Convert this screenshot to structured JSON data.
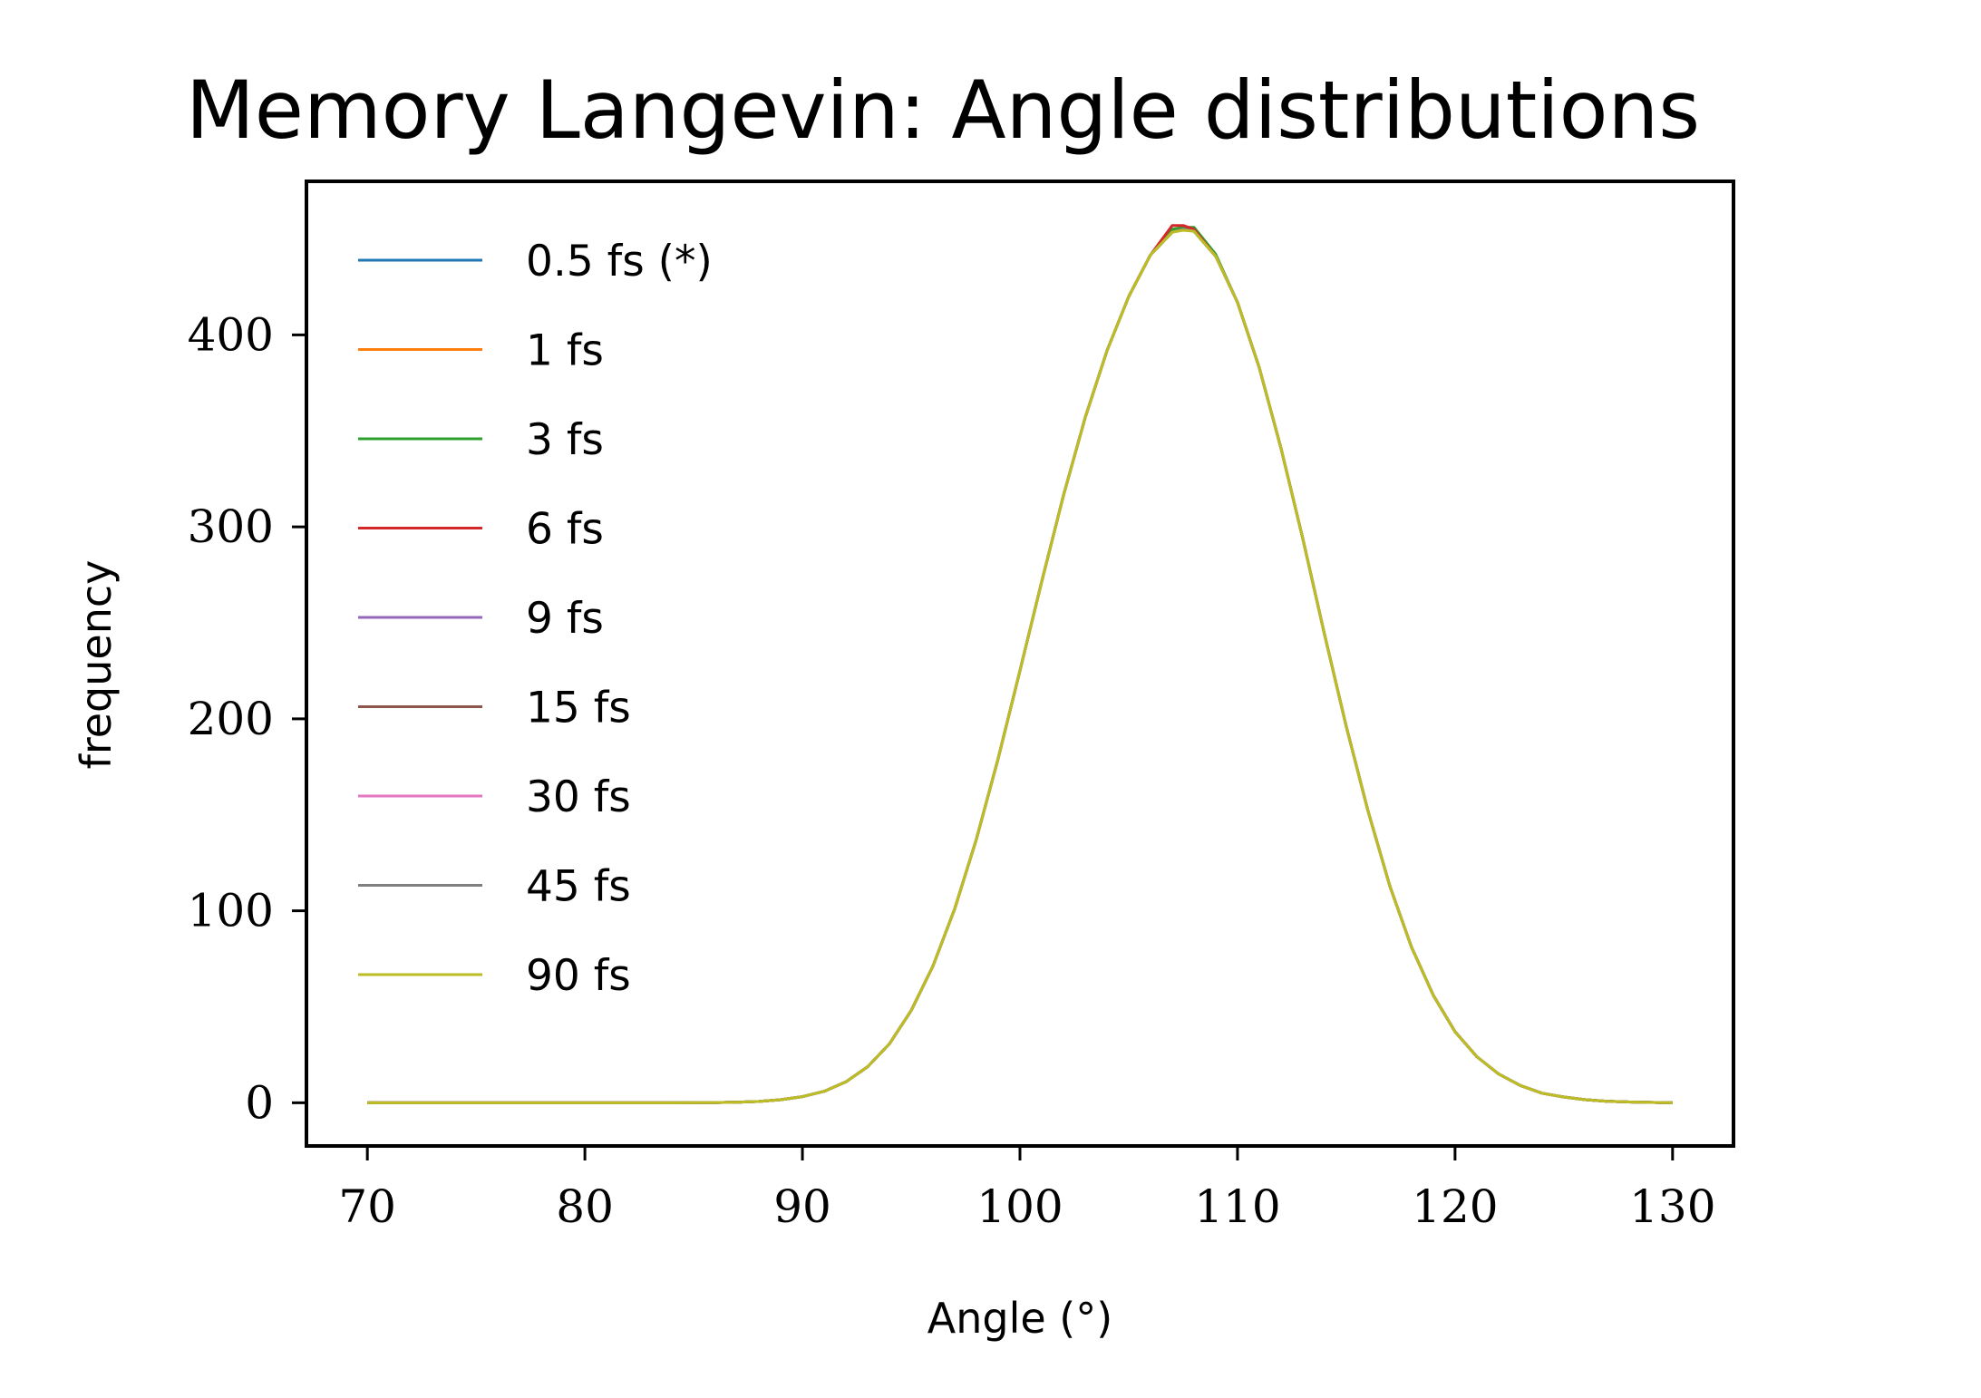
{
  "chart_data": {
    "type": "line",
    "title": "Memory Langevin: Angle distributions",
    "xlabel": "Angle (°)",
    "ylabel": "frequency",
    "xlim": [
      67.2,
      132.8
    ],
    "ylim": [
      -22.5,
      480
    ],
    "xticks": [
      70,
      80,
      90,
      100,
      110,
      120,
      130
    ],
    "yticks": [
      0,
      100,
      200,
      300,
      400
    ],
    "grid": false,
    "legend_position": "top-left",
    "x": [
      70,
      72,
      74,
      76,
      78,
      80,
      82,
      84,
      86,
      87,
      88,
      89,
      90,
      91,
      92,
      93,
      94,
      95,
      96,
      97,
      98,
      99,
      100,
      101,
      102,
      103,
      104,
      105,
      106,
      107,
      107.5,
      108,
      109,
      110,
      111,
      112,
      113,
      114,
      115,
      116,
      117,
      118,
      119,
      120,
      121,
      122,
      123,
      124,
      125,
      126,
      127,
      128,
      130
    ],
    "series": [
      {
        "name": "0.5 fs (*)",
        "color": "#1f77b4",
        "values": [
          0,
          0,
          0,
          0,
          0,
          0,
          0,
          0,
          0.1,
          0.3,
          0.7,
          1.6,
          3.2,
          6,
          10.9,
          18.8,
          30.7,
          48,
          71.2,
          101,
          137.4,
          179.4,
          225.1,
          271.5,
          316.4,
          357,
          391.8,
          420,
          441.7,
          453.5,
          455,
          454,
          441,
          417,
          383,
          341,
          294,
          244,
          196,
          152,
          113,
          81,
          56,
          37,
          24,
          15,
          9,
          5,
          3,
          1.6,
          0.8,
          0.4,
          0
        ]
      },
      {
        "name": "1 fs",
        "color": "#ff7f0e",
        "values": [
          0,
          0,
          0,
          0,
          0,
          0,
          0,
          0,
          0.1,
          0.3,
          0.7,
          1.6,
          3.2,
          6,
          10.9,
          18.8,
          30.7,
          48,
          71.2,
          101,
          137.4,
          179.4,
          225.1,
          271.5,
          316.4,
          357,
          391.8,
          420,
          441.7,
          454,
          456,
          454,
          441,
          417,
          383,
          341,
          294,
          244,
          196,
          152,
          113,
          81,
          56,
          37,
          24,
          15,
          9,
          5,
          3,
          1.6,
          0.8,
          0.4,
          0
        ]
      },
      {
        "name": "3 fs",
        "color": "#2ca02c",
        "values": [
          0,
          0,
          0,
          0,
          0,
          0,
          0,
          0,
          0.1,
          0.3,
          0.7,
          1.6,
          3.2,
          6,
          10.9,
          18.8,
          30.7,
          48,
          71.2,
          101,
          137.4,
          179.4,
          225.1,
          271.5,
          316.4,
          357,
          391.8,
          420,
          441.7,
          455,
          456,
          456,
          442,
          417,
          383,
          341,
          294,
          244,
          196,
          152,
          113,
          81,
          56,
          37,
          24,
          15,
          9,
          5,
          3,
          1.6,
          0.8,
          0.4,
          0
        ]
      },
      {
        "name": "6 fs",
        "color": "#d62728",
        "values": [
          0,
          0,
          0,
          0,
          0,
          0,
          0,
          0,
          0.1,
          0.3,
          0.7,
          1.6,
          3.2,
          6,
          10.9,
          18.8,
          30.7,
          48,
          71.2,
          101,
          137.4,
          179.4,
          225.1,
          271.5,
          316.4,
          357,
          391.8,
          420,
          441.7,
          457,
          457,
          455,
          441,
          417,
          383,
          341,
          294,
          244,
          196,
          152,
          113,
          81,
          56,
          37,
          24,
          15,
          9,
          5,
          3,
          1.6,
          0.8,
          0.4,
          0
        ]
      },
      {
        "name": "9 fs",
        "color": "#9467bd",
        "values": [
          0,
          0,
          0,
          0,
          0,
          0,
          0,
          0,
          0.1,
          0.3,
          0.7,
          1.6,
          3.2,
          6,
          10.9,
          18.8,
          30.7,
          48,
          71.2,
          101,
          137.4,
          179.4,
          225.1,
          271.5,
          316.4,
          357,
          391.8,
          420,
          441.7,
          453.5,
          455,
          454,
          441,
          417,
          383,
          341,
          294,
          244,
          196,
          152,
          113,
          81,
          56,
          37,
          24,
          15,
          9,
          5,
          3,
          1.6,
          0.8,
          0.4,
          0
        ]
      },
      {
        "name": "15 fs",
        "color": "#8c564b",
        "values": [
          0,
          0,
          0,
          0,
          0,
          0,
          0,
          0,
          0.1,
          0.3,
          0.7,
          1.6,
          3.2,
          6,
          10.9,
          18.8,
          30.7,
          48,
          71.2,
          101,
          137.4,
          179.4,
          225.1,
          271.5,
          316.4,
          357,
          391.8,
          420,
          441.7,
          453.5,
          455,
          454,
          441,
          417,
          383,
          341,
          294,
          244,
          196,
          152,
          113,
          81,
          56,
          37,
          24,
          15,
          9,
          5,
          3,
          1.6,
          0.8,
          0.4,
          0
        ]
      },
      {
        "name": "30 fs",
        "color": "#e377c2",
        "values": [
          0,
          0,
          0,
          0,
          0,
          0,
          0,
          0,
          0.1,
          0.3,
          0.7,
          1.6,
          3.2,
          6,
          10.9,
          18.8,
          30.7,
          48,
          71.2,
          101,
          137.4,
          179.4,
          225.1,
          271.5,
          316.4,
          357,
          391.8,
          420,
          441.7,
          453.5,
          455,
          454,
          441,
          417,
          383,
          341,
          294,
          244,
          196,
          152,
          113,
          81,
          56,
          37,
          24,
          15,
          9,
          5,
          3,
          1.6,
          0.8,
          0.4,
          0
        ]
      },
      {
        "name": "45 fs",
        "color": "#7f7f7f",
        "values": [
          0,
          0,
          0,
          0,
          0,
          0,
          0,
          0,
          0.1,
          0.3,
          0.7,
          1.6,
          3.2,
          6,
          10.9,
          18.8,
          30.7,
          48,
          71.2,
          101,
          137.4,
          179.4,
          225.1,
          271.5,
          316.4,
          357,
          391.8,
          420,
          441.7,
          453.5,
          455,
          454,
          441,
          417,
          383,
          341,
          294,
          244,
          196,
          152,
          113,
          81,
          56,
          37,
          24,
          15,
          9,
          5,
          3,
          1.6,
          0.8,
          0.4,
          0
        ]
      },
      {
        "name": "90 fs",
        "color": "#bcbd22",
        "values": [
          0,
          0,
          0,
          0,
          0,
          0,
          0,
          0,
          0.1,
          0.3,
          0.7,
          1.6,
          3.2,
          6,
          10.9,
          18.8,
          30.7,
          48,
          71.2,
          101,
          137.4,
          179.4,
          225.1,
          271.5,
          316.4,
          357,
          391.8,
          420,
          441.7,
          453.5,
          454.5,
          454,
          441,
          417,
          383,
          341,
          294,
          244,
          196,
          152,
          113,
          81,
          56,
          37,
          24,
          15,
          9,
          5,
          3,
          1.6,
          0.8,
          0.4,
          0
        ]
      }
    ]
  }
}
